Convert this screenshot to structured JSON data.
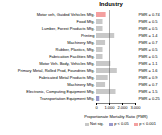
{
  "chart_data": {
    "type": "bar",
    "orientation": "horizontal",
    "title": "Industry",
    "xlabel": "Proportionate Mortality Ratio (PMR)",
    "categories": [
      "Motor veh, Guided Vehicles Mfg.",
      "Food Mfg.",
      "Lumber, Forest Products Mfg.",
      "Printing",
      "Machinery Mfg.",
      "Rubber, Plastics, Mfg.",
      "Fabrication Facilities Mfg.",
      "Motor Veh. Body, Vehicles Mfg.",
      "Primary Metal, Rolled Prod, Foundries Mfg.",
      "Fabricated Metal Products Mfg.",
      "Machinery Mfg.",
      "Electronic, Computing Equipment Mfg.",
      "Transportation Equipment Mfg."
    ],
    "values": [
      0.74,
      0.5,
      0.5,
      1.4,
      0.7,
      0.5,
      0.5,
      1.1,
      1.6,
      0.9,
      0.7,
      1.5,
      0.25
    ],
    "colors": [
      "#f4a0a0",
      "#c8c8c8",
      "#c8c8c8",
      "#c8c8c8",
      "#c8c8c8",
      "#c8c8c8",
      "#c8c8c8",
      "#c8c8c8",
      "#c8c8c8",
      "#c8c8c8",
      "#c8c8c8",
      "#c8c8c8",
      "#9999cc"
    ],
    "data_labels": true,
    "value_labels": [
      "PMR = 0.74",
      "PMR = 0.5",
      "PMR = 0.5",
      "PMR = 1.4",
      "PMR = 0.7",
      "PMR = 0.5",
      "PMR = 0.5",
      "PMR = 1.1",
      "PMR = 1.6",
      "PMR = 0.9",
      "PMR = 0.7",
      "PMR = 1.5",
      "PMR = 0.25"
    ],
    "reference_line": 1.0,
    "xlim": [
      0,
      3.0
    ],
    "xticks": [
      0,
      {
        "value": 1.0,
        "label": "1.000"
      },
      {
        "value": 2.0,
        "label": "2.000"
      },
      {
        "value": 3.0,
        "label": "3.000"
      }
    ],
    "grid": false,
    "legend": "lower right",
    "legend_entries": [
      {
        "label": "Not sig.",
        "color": "#c8c8c8"
      },
      {
        "label": "p < 0.05",
        "color": "#9999cc"
      },
      {
        "label": "p < 0.001",
        "color": "#f4a0a0"
      }
    ]
  }
}
